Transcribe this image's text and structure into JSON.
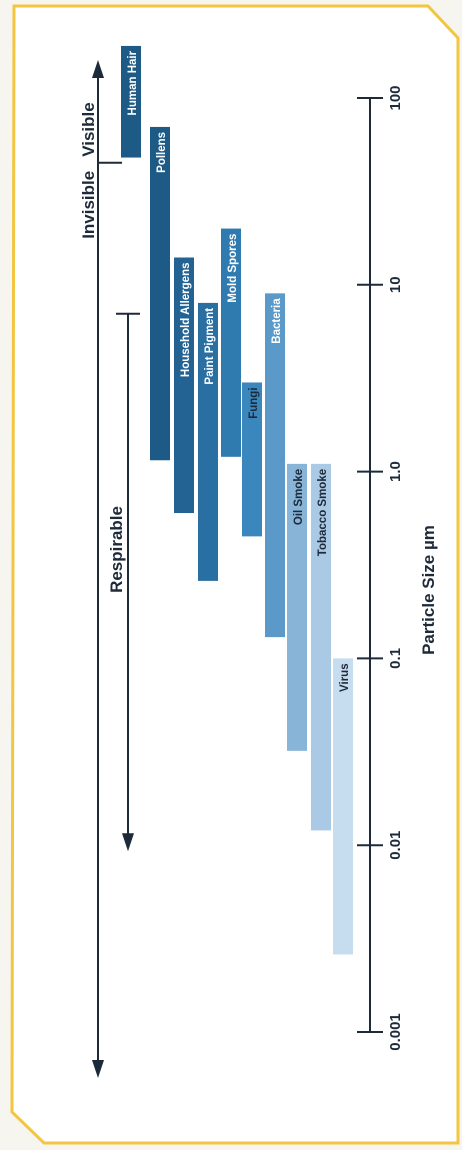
{
  "colors": {
    "frame": "#f2c641",
    "paper": "#ffffff",
    "ink": "#1d2a3a",
    "bar_text": "#ffffff",
    "bar_text_dark": "#1d2a3a"
  },
  "chart_data": {
    "type": "bar",
    "orientation": "rotated (log axis runs vertically, labels read bottom-to-top)",
    "xlabel": "Particle Size µm",
    "scale": "log",
    "xlim": [
      0.001,
      100
    ],
    "ticks": [
      {
        "value": 0.001,
        "label": "0.001"
      },
      {
        "value": 0.01,
        "label": "0.01"
      },
      {
        "value": 0.1,
        "label": "0.1"
      },
      {
        "value": 1,
        "label": "1.0"
      },
      {
        "value": 10,
        "label": "10"
      },
      {
        "value": 100,
        "label": "100"
      }
    ],
    "grid": false,
    "bars": [
      {
        "label": "Human Hair",
        "range": [
          48,
          190
        ],
        "color": "#1e5a86",
        "text_color": "#ffffff"
      },
      {
        "label": "Pollens",
        "range": [
          1.15,
          70
        ],
        "color": "#1e5a86",
        "text_color": "#ffffff"
      },
      {
        "label": "Household Allergens",
        "range": [
          0.6,
          14
        ],
        "color": "#236394",
        "text_color": "#ffffff"
      },
      {
        "label": "Paint Pigment",
        "range": [
          0.26,
          8
        ],
        "color": "#2a6fa2",
        "text_color": "#ffffff"
      },
      {
        "label": "Mold Spores",
        "range": [
          1.2,
          20
        ],
        "color": "#2f7bb0",
        "text_color": "#ffffff"
      },
      {
        "label": "Fungi",
        "range": [
          0.45,
          3
        ],
        "color": "#3a87bd",
        "text_color": "#1d2a3a"
      },
      {
        "label": "Bacteria",
        "range": [
          0.13,
          9
        ],
        "color": "#5b99c8",
        "text_color": "#ffffff"
      },
      {
        "label": "Oil Smoke",
        "range": [
          0.032,
          1.1
        ],
        "color": "#88b4d8",
        "text_color": "#1d2a3a"
      },
      {
        "label": "Tobacco Smoke",
        "range": [
          0.012,
          1.1
        ],
        "color": "#aac9e4",
        "text_color": "#1d2a3a"
      },
      {
        "label": "Virus",
        "range": [
          0.0026,
          0.1
        ],
        "color": "#c6dcef",
        "text_color": "#1d2a3a"
      }
    ],
    "annotations": {
      "invisible_label": "Invisible",
      "visible_label": "Visible",
      "visibility_threshold": 45,
      "respirable_label": "Respirable",
      "respirable_range": [
        0.01,
        7
      ]
    }
  }
}
